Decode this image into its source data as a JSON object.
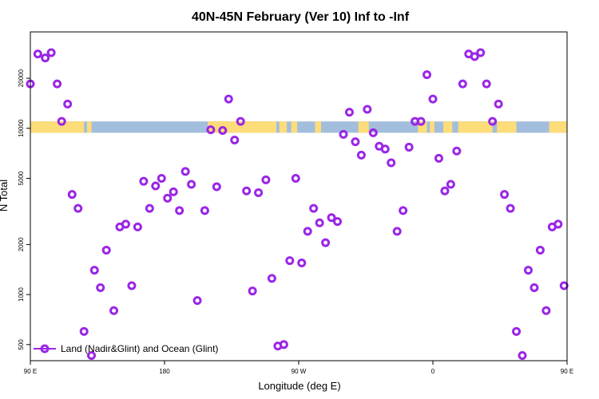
{
  "chart_data": {
    "type": "scatter",
    "title": "40N-45N February (Ver 10)   Inf to -Inf",
    "xlabel": "Longitude (deg E)",
    "ylabel": "N Total",
    "y_scale": "log",
    "xlim": [
      90,
      450
    ],
    "ylim": [
      400,
      38000
    ],
    "x_ticks": [
      {
        "value": 90,
        "label": "90 E"
      },
      {
        "value": 180,
        "label": "180"
      },
      {
        "value": 270,
        "label": "90 W"
      },
      {
        "value": 360,
        "label": "0"
      },
      {
        "value": 450,
        "label": "90 E"
      },
      {
        "value": 540,
        "label": "180"
      }
    ],
    "y_ticks": [
      {
        "value": 500,
        "label": "500"
      },
      {
        "value": 1000,
        "label": "1000"
      },
      {
        "value": 2000,
        "label": "2000"
      },
      {
        "value": 5000,
        "label": "5000"
      },
      {
        "value": 10000,
        "label": "10000"
      },
      {
        "value": 20000,
        "label": "20000"
      }
    ],
    "land_ocean_band": {
      "y_range": [
        9400,
        11000
      ],
      "ocean_color": "#a3bedc",
      "land_color": "#fddc7a",
      "land_x_ranges": [
        [
          90,
          126
        ],
        [
          128,
          131
        ],
        [
          209,
          255
        ],
        [
          257,
          262
        ],
        [
          265,
          269
        ],
        [
          281,
          285
        ],
        [
          310,
          317
        ],
        [
          350,
          356
        ],
        [
          358,
          361
        ],
        [
          367,
          373
        ],
        [
          377,
          400
        ],
        [
          403,
          416
        ],
        [
          438,
          485
        ],
        [
          487,
          490
        ]
      ]
    },
    "grid": false,
    "legend_position": "bottom-left",
    "series": [
      {
        "name": "Land (Nadir&Glint) and Ocean (Glint)",
        "color": "#9a26e6",
        "points": [
          [
            90,
            18500
          ],
          [
            95,
            28000
          ],
          [
            100,
            26500
          ],
          [
            104,
            28500
          ],
          [
            108,
            18500
          ],
          [
            111,
            11000
          ],
          [
            115,
            14000
          ],
          [
            118,
            4000
          ],
          [
            122,
            3300
          ],
          [
            126,
            600
          ],
          [
            131,
            430
          ],
          [
            133,
            1400
          ],
          [
            137,
            1100
          ],
          [
            141,
            1850
          ],
          [
            146,
            800
          ],
          [
            150,
            2550
          ],
          [
            154,
            2650
          ],
          [
            158,
            1130
          ],
          [
            162,
            2550
          ],
          [
            166,
            4800
          ],
          [
            170,
            3300
          ],
          [
            174,
            4500
          ],
          [
            178,
            5000
          ],
          [
            182,
            3800
          ],
          [
            186,
            4150
          ],
          [
            190,
            3200
          ],
          [
            194,
            5500
          ],
          [
            198,
            4600
          ],
          [
            202,
            920
          ],
          [
            207,
            3200
          ],
          [
            211,
            9800
          ],
          [
            215,
            4450
          ],
          [
            219,
            9700
          ],
          [
            223,
            15000
          ],
          [
            227,
            8500
          ],
          [
            231,
            11000
          ],
          [
            235,
            4200
          ],
          [
            239,
            1050
          ],
          [
            243,
            4100
          ],
          [
            248,
            4900
          ],
          [
            252,
            1250
          ],
          [
            256,
            490
          ],
          [
            260,
            500
          ],
          [
            264,
            1600
          ],
          [
            268,
            5000
          ],
          [
            272,
            1550
          ],
          [
            276,
            2400
          ],
          [
            280,
            3300
          ],
          [
            284,
            2700
          ],
          [
            288,
            2050
          ],
          [
            292,
            2900
          ],
          [
            296,
            2750
          ],
          [
            300,
            9200
          ],
          [
            304,
            12500
          ],
          [
            308,
            8300
          ],
          [
            312,
            6900
          ],
          [
            316,
            13000
          ],
          [
            320,
            9400
          ],
          [
            324,
            7800
          ],
          [
            328,
            7500
          ],
          [
            332,
            6200
          ],
          [
            336,
            2400
          ],
          [
            340,
            3200
          ],
          [
            344,
            7700
          ],
          [
            348,
            11000
          ],
          [
            352,
            11000
          ],
          [
            356,
            21000
          ],
          [
            360,
            15000
          ],
          [
            364,
            6600
          ],
          [
            368,
            4200
          ],
          [
            372,
            4600
          ],
          [
            376,
            7300
          ],
          [
            380,
            18500
          ],
          [
            384,
            28000
          ],
          [
            388,
            27000
          ],
          [
            392,
            28500
          ],
          [
            396,
            18500
          ],
          [
            400,
            11000
          ],
          [
            404,
            14000
          ],
          [
            408,
            4000
          ],
          [
            412,
            3300
          ],
          [
            416,
            600
          ],
          [
            420,
            430
          ],
          [
            424,
            1400
          ],
          [
            428,
            1100
          ],
          [
            432,
            1850
          ],
          [
            436,
            800
          ],
          [
            440,
            2550
          ],
          [
            444,
            2650
          ],
          [
            448,
            1130
          ]
        ]
      }
    ]
  }
}
